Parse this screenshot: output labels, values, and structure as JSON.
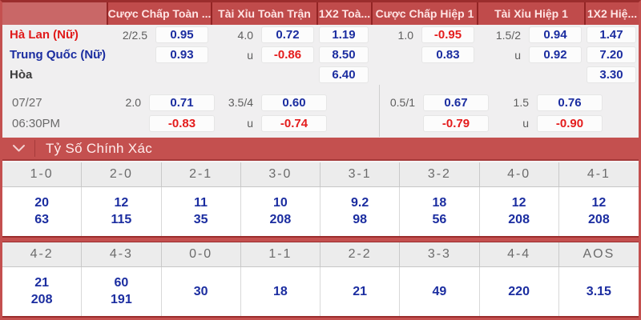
{
  "colors": {
    "accent_red": "#c4504f",
    "dark_red_border": "#9b2d2d",
    "header_red": "#c04b4b",
    "odds_blue": "#1b2da0",
    "odds_negative_red": "#e41c1c",
    "home_team_red": "#e01b1b",
    "panel_bg": "#f0eff0"
  },
  "odds": {
    "headers": [
      "Cược Chấp Toàn ...",
      "Tài Xỉu Toàn Trận",
      "1X2 Toà...",
      "Cược Chấp Hiệp 1",
      "Tài Xỉu Hiệp 1",
      "1X2 Hiệ..."
    ],
    "home": {
      "team": "Hà Lan (Nữ)",
      "fh_hdp": "2/2.5",
      "fh": "0.95",
      "ou_hdp": "4.0",
      "ou": "0.72",
      "x12": "1.19",
      "fh1_hdp": "1.0",
      "fh1": "-0.95",
      "ou1_hdp": "1.5/2",
      "ou1": "0.94",
      "x121": "1.47"
    },
    "away": {
      "team": "Trung Quốc (Nữ)",
      "fh": "0.93",
      "ou_hdp": "u",
      "ou": "-0.86",
      "x12": "8.50",
      "fh1": "0.83",
      "ou1_hdp": "u",
      "ou1": "0.92",
      "x121": "7.20"
    },
    "draw": {
      "label": "Hòa",
      "x12": "6.40",
      "x121": "3.30"
    },
    "schedule": {
      "date": "07/27",
      "time": "06:30PM"
    },
    "late1": {
      "fh_hdp": "2.0",
      "fh": "0.71",
      "ou_hdp": "3.5/4",
      "ou": "0.60",
      "fh1_hdp": "0.5/1",
      "fh1": "0.67",
      "ou1_hdp": "1.5",
      "ou1": "0.76"
    },
    "late2": {
      "fh": "-0.83",
      "ou_hdp": "u",
      "ou": "-0.74",
      "fh1": "-0.79",
      "ou1_hdp": "u",
      "ou1": "-0.90"
    }
  },
  "correct_score": {
    "title": "Tỷ Số Chính Xác",
    "groups": [
      [
        {
          "score": "1-0",
          "odds": [
            "20",
            "63"
          ]
        },
        {
          "score": "2-0",
          "odds": [
            "12",
            "115"
          ]
        },
        {
          "score": "2-1",
          "odds": [
            "11",
            "35"
          ]
        },
        {
          "score": "3-0",
          "odds": [
            "10",
            "208"
          ]
        },
        {
          "score": "3-1",
          "odds": [
            "9.2",
            "98"
          ]
        },
        {
          "score": "3-2",
          "odds": [
            "18",
            "56"
          ]
        },
        {
          "score": "4-0",
          "odds": [
            "12",
            "208"
          ]
        },
        {
          "score": "4-1",
          "odds": [
            "12",
            "208"
          ]
        }
      ],
      [
        {
          "score": "4-2",
          "odds": [
            "21",
            "208"
          ]
        },
        {
          "score": "4-3",
          "odds": [
            "60",
            "191"
          ]
        },
        {
          "score": "0-0",
          "odds": [
            "30"
          ]
        },
        {
          "score": "1-1",
          "odds": [
            "18"
          ]
        },
        {
          "score": "2-2",
          "odds": [
            "21"
          ]
        },
        {
          "score": "3-3",
          "odds": [
            "49"
          ]
        },
        {
          "score": "4-4",
          "odds": [
            "220"
          ]
        },
        {
          "score": "AOS",
          "odds": [
            "3.15"
          ]
        }
      ]
    ]
  }
}
